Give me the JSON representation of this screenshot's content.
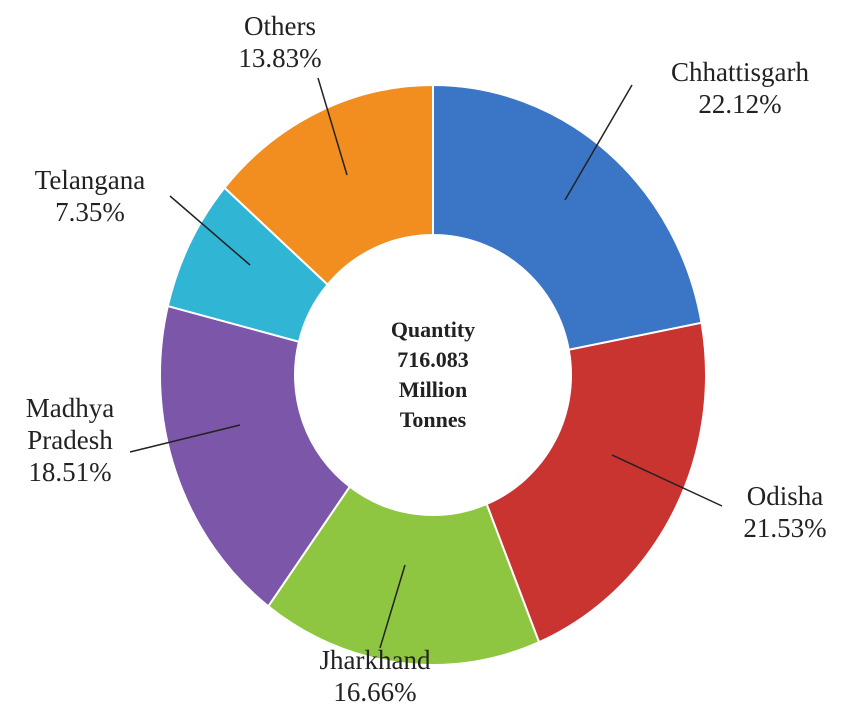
{
  "chart_data": {
    "type": "donut",
    "categories": [
      "Chhattisgarh",
      "Odisha",
      "Jharkhand",
      "Madhya Pradesh",
      "Telangana",
      "Others"
    ],
    "values": [
      22.12,
      21.53,
      16.66,
      18.51,
      7.35,
      13.83
    ],
    "value_labels": [
      "22.12%",
      "21.53%",
      "16.66%",
      "18.51%",
      "7.35%",
      "13.83%"
    ],
    "colors": [
      "#3b76c6",
      "#c93330",
      "#8ec641",
      "#7c56a9",
      "#31b5d5",
      "#f28d1f"
    ],
    "center_text": [
      "Quantity",
      "716.083",
      "Million",
      "Tonnes"
    ]
  }
}
